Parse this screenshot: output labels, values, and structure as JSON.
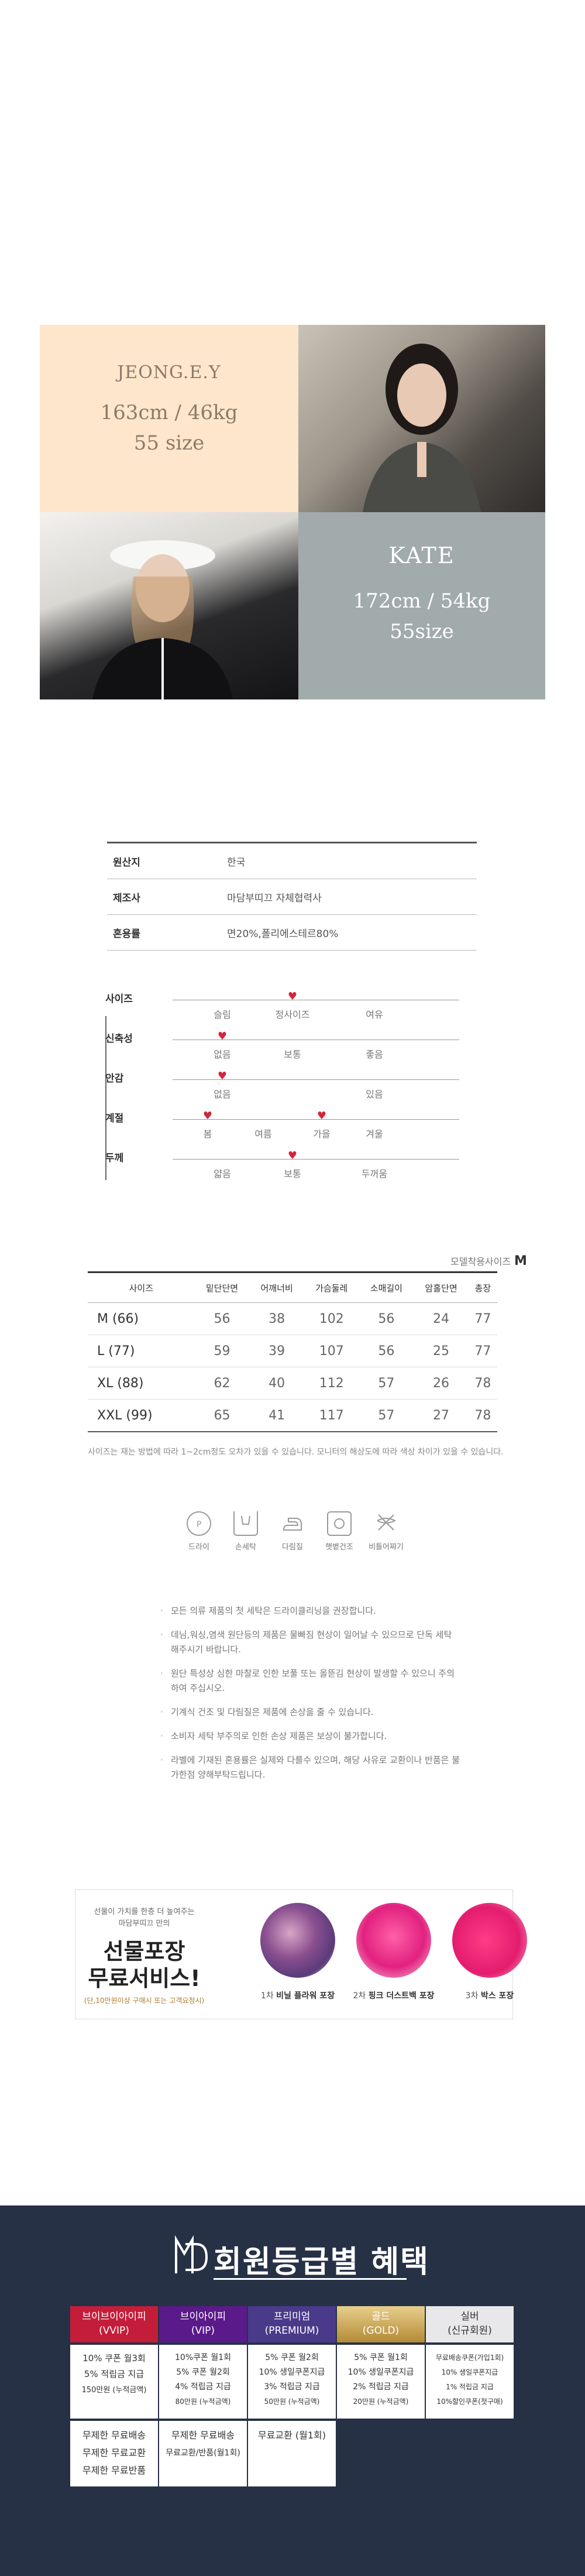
{
  "models": [
    {
      "name": "JEONG.E.Y",
      "stats": "163cm / 46kg",
      "size": "55 size"
    },
    {
      "name": "KATE",
      "stats": "172cm / 54kg",
      "size": "55size"
    }
  ],
  "origin_table": [
    {
      "label": "원산지",
      "value": "한국"
    },
    {
      "label": "제조사",
      "value": "마담부띠끄 자체협력사"
    },
    {
      "label": "혼용률",
      "value": "면20%,폴리에스테르80%"
    }
  ],
  "properties": [
    {
      "label": "사이즈",
      "options": [
        "슬림",
        "정사이즈",
        "여유"
      ],
      "selected": 1
    },
    {
      "label": "신축성",
      "options": [
        "없음",
        "보통",
        "좋음"
      ],
      "selected": 0
    },
    {
      "label": "안감",
      "options": [
        "없음",
        "있음"
      ],
      "selected": 0
    },
    {
      "label": "계절",
      "options": [
        "봄",
        "여름",
        "가을",
        "겨울"
      ],
      "selected": [
        0,
        2
      ]
    },
    {
      "label": "두께",
      "options": [
        "얇음",
        "보통",
        "두꺼움"
      ],
      "selected": 1
    }
  ],
  "model_size": {
    "label": "모델착용사이즈",
    "value": "M"
  },
  "size_table": {
    "headers": [
      "사이즈",
      "밑단단면",
      "어깨너비",
      "가슴둘레",
      "소매길이",
      "암홀단면",
      "총장"
    ],
    "rows": [
      [
        "M (66)",
        "56",
        "38",
        "102",
        "56",
        "24",
        "77"
      ],
      [
        "L (77)",
        "59",
        "39",
        "107",
        "56",
        "25",
        "77"
      ],
      [
        "XL (88)",
        "62",
        "40",
        "112",
        "57",
        "26",
        "78"
      ],
      [
        "XXL (99)",
        "65",
        "41",
        "117",
        "57",
        "27",
        "78"
      ]
    ]
  },
  "size_note": "사이즈는 재는 방법에 따라 1~2cm정도 오차가 있을 수 있습니다. 모니터의 해상도에 따라 색상 차이가 있을 수 있습니다.",
  "care_icons": [
    {
      "label": "드라이",
      "icon": "dry-clean-icon"
    },
    {
      "label": "손세탁",
      "icon": "hand-wash-icon"
    },
    {
      "label": "다림질",
      "icon": "iron-icon"
    },
    {
      "label": "햇볕건조",
      "icon": "sun-dry-icon"
    },
    {
      "label": "비틀어짜기",
      "icon": "no-wring-icon"
    }
  ],
  "care_notes": [
    "모든 의류 제품의 첫 세탁은 드라이클리닝을 권장합니다.",
    "데님,워싱,염색 원단등의 제품은 물빠짐 현상이 일어날 수 있으므로 단독 세탁 해주시기 바랍니다.",
    "원단 특성상 심한 마찰로 인한 보풀 또는 올뜯김 현상이 발생할 수 있으니 주의하여 주십시오.",
    "기계식 건조 및 다림질은 제품에 손상을 줄 수 있습니다.",
    "소비자 세탁 부주의로 인한 손상 제품은 보상이 불가합니다.",
    "라벨에 기재된 혼용률은 실제와 다를수 있으며, 해당 사유로 교환이나 반품은 불가한점 양해부탁드립니다."
  ],
  "gift": {
    "line1": "선물이 가치를 한층 더 높여주는",
    "line2": "마담부띠끄 만의",
    "title1": "선물포장",
    "title2": "무료서비스!",
    "note": "(단,10만원이상 구매시 또는 고객요청시)",
    "options": [
      {
        "num": "1차",
        "label": "비닐 플라워 포장"
      },
      {
        "num": "2차",
        "label": "핑크 더스트백 포장"
      },
      {
        "num": "3차",
        "label": "박스 포장"
      }
    ]
  },
  "membership": {
    "title": "회원등급별 혜택",
    "tiers": [
      {
        "name": "브이브이아이피",
        "eng": "(VVIP)",
        "color": "#c41d3a",
        "benefits": [
          "10% 쿠폰 월3회",
          "5% 적립금 지급",
          "150만원 (누적금액)"
        ]
      },
      {
        "name": "브이아이피",
        "eng": "(VIP)",
        "color": "#5a1a8a",
        "benefits": [
          "10%쿠폰 월1회",
          "5% 쿠폰 월2회",
          "4% 적립금 지급",
          "80만원 (누적금액)"
        ]
      },
      {
        "name": "프리미엄",
        "eng": "(PREMIUM)",
        "color": "#4a3a8a",
        "benefits": [
          "5% 쿠폰 월2회",
          "10% 생일쿠폰지급",
          "3% 적립금 지급",
          "50만원 (누적금액)"
        ]
      },
      {
        "name": "골드",
        "eng": "(GOLD)",
        "color": "#c7a24a",
        "benefits": [
          "5% 쿠폰 월1회",
          "10% 생일쿠폰지급",
          "2% 적립금 지급",
          "20만원 (누적금액)"
        ]
      },
      {
        "name": "실버",
        "eng": "(신규회원)",
        "color": "#e8e8ea",
        "benefits": [
          "무료배송쿠폰(가입1회)",
          "10% 생일쿠폰지급",
          "1% 적립금 지급",
          "10%할인쿠폰(첫구매)"
        ]
      }
    ],
    "foot": [
      [
        "무제한 무료배송",
        "무제한 무료교환",
        "무제한 무료반품"
      ],
      [
        "무제한 무료배송",
        "무료교환/반품(월1회)"
      ],
      [
        "무료교환 (월1회)"
      ]
    ]
  },
  "colors": {
    "accent_heart": "#d3263b",
    "member_bg": "#263146",
    "peach": "#fde6cc",
    "grey": "#a2abab"
  }
}
